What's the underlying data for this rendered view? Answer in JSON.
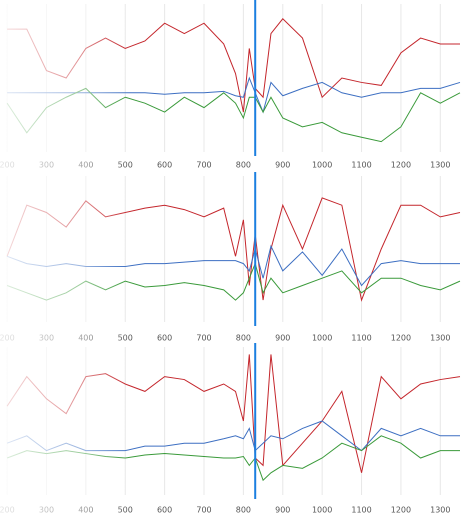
{
  "chart_data": [
    {
      "type": "line",
      "x": [
        200,
        250,
        300,
        350,
        400,
        450,
        500,
        550,
        600,
        650,
        700,
        750,
        780,
        800,
        815,
        830,
        850,
        870,
        900,
        950,
        1000,
        1050,
        1100,
        1150,
        1200,
        1250,
        1300,
        1350
      ],
      "series": [
        {
          "color": "#c4262c",
          "values": [
            83,
            83,
            55,
            50,
            70,
            77,
            70,
            75,
            87,
            80,
            87,
            73,
            53,
            27,
            70,
            43,
            37,
            80,
            90,
            77,
            37,
            50,
            47,
            45,
            67,
            77,
            73,
            73
          ]
        },
        {
          "color": "#3d6fc2",
          "values": [
            40,
            40,
            40,
            40,
            40,
            40,
            40,
            40,
            39,
            40,
            40,
            41,
            38,
            37,
            50,
            40,
            27,
            47,
            38,
            43,
            47,
            40,
            37,
            40,
            40,
            43,
            43,
            47
          ]
        },
        {
          "color": "#3a9a3a",
          "values": [
            33,
            13,
            30,
            37,
            43,
            30,
            37,
            33,
            27,
            37,
            30,
            40,
            33,
            23,
            37,
            37,
            27,
            37,
            23,
            17,
            20,
            13,
            10,
            7,
            17,
            40,
            33,
            40
          ]
        }
      ],
      "xlim": [
        182,
        1350
      ],
      "ylim": [
        0,
        100
      ],
      "xticks": [
        200,
        300,
        400,
        500,
        600,
        700,
        800,
        900,
        1000,
        1100,
        1200,
        1300
      ],
      "grid": true,
      "cursor_x": 830,
      "cursor_color": "#1b7fe0"
    },
    {
      "type": "line",
      "x": [
        200,
        250,
        300,
        350,
        400,
        450,
        500,
        550,
        600,
        650,
        700,
        750,
        780,
        800,
        815,
        830,
        850,
        870,
        900,
        950,
        1000,
        1050,
        1100,
        1150,
        1200,
        1250,
        1300,
        1350
      ],
      "series": [
        {
          "color": "#c4262c",
          "values": [
            45,
            80,
            75,
            65,
            83,
            72,
            75,
            78,
            80,
            77,
            72,
            78,
            45,
            70,
            25,
            60,
            15,
            50,
            80,
            50,
            85,
            80,
            15,
            50,
            80,
            80,
            72,
            75
          ]
        },
        {
          "color": "#3d6fc2",
          "values": [
            45,
            40,
            38,
            40,
            38,
            38,
            38,
            40,
            40,
            41,
            42,
            42,
            42,
            40,
            35,
            50,
            30,
            52,
            35,
            48,
            32,
            50,
            25,
            40,
            42,
            40,
            40,
            40
          ]
        },
        {
          "color": "#3a9a3a",
          "values": [
            25,
            20,
            15,
            20,
            28,
            22,
            28,
            24,
            25,
            27,
            25,
            22,
            15,
            20,
            30,
            40,
            20,
            30,
            20,
            25,
            30,
            35,
            20,
            30,
            30,
            25,
            22,
            28
          ]
        }
      ],
      "xlim": [
        182,
        1350
      ],
      "ylim": [
        0,
        100
      ],
      "xticks": [
        200,
        300,
        400,
        500,
        600,
        700,
        800,
        900,
        1000,
        1100,
        1200,
        1300
      ],
      "grid": true,
      "cursor_x": 830,
      "cursor_color": "#1b7fe0"
    },
    {
      "type": "line",
      "x": [
        200,
        250,
        300,
        350,
        400,
        450,
        500,
        550,
        600,
        650,
        700,
        750,
        780,
        800,
        815,
        830,
        850,
        870,
        900,
        950,
        1000,
        1050,
        1100,
        1150,
        1200,
        1250,
        1300,
        1350
      ],
      "series": [
        {
          "color": "#c4262c",
          "values": [
            60,
            80,
            65,
            55,
            80,
            82,
            75,
            70,
            80,
            78,
            70,
            75,
            70,
            50,
            95,
            25,
            20,
            95,
            20,
            35,
            50,
            70,
            15,
            80,
            65,
            75,
            78,
            80
          ]
        },
        {
          "color": "#3d6fc2",
          "values": [
            35,
            40,
            30,
            35,
            30,
            30,
            30,
            33,
            33,
            35,
            35,
            38,
            40,
            38,
            45,
            30,
            35,
            40,
            38,
            45,
            50,
            40,
            30,
            45,
            40,
            45,
            40,
            40
          ]
        },
        {
          "color": "#3a9a3a",
          "values": [
            25,
            30,
            28,
            30,
            28,
            26,
            25,
            27,
            28,
            27,
            26,
            25,
            25,
            26,
            20,
            25,
            10,
            15,
            20,
            18,
            25,
            35,
            30,
            40,
            35,
            25,
            30,
            30
          ]
        }
      ],
      "xlim": [
        182,
        1350
      ],
      "ylim": [
        0,
        100
      ],
      "xticks": [
        200,
        300,
        400,
        500,
        600,
        700,
        800,
        900,
        1000,
        1100,
        1200,
        1300
      ],
      "grid": true,
      "cursor_x": 830,
      "cursor_color": "#1b7fe0"
    }
  ]
}
